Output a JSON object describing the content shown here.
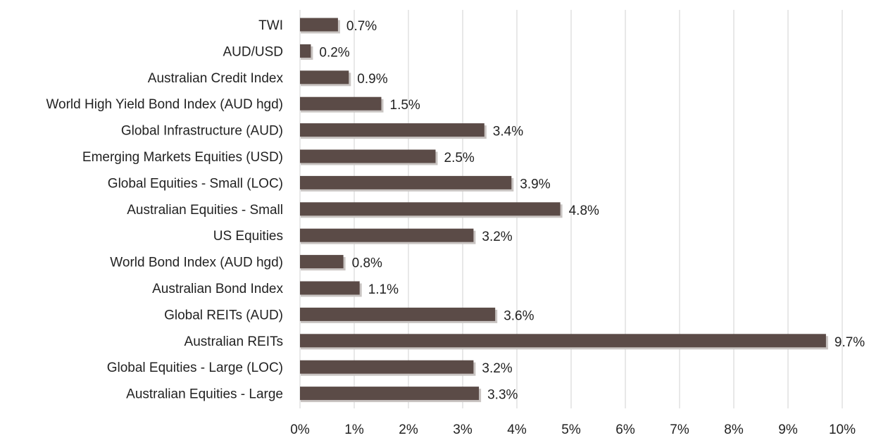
{
  "chart_data": {
    "type": "bar",
    "orientation": "horizontal",
    "categories": [
      "TWI",
      "AUD/USD",
      "Australian Credit Index",
      "World High Yield Bond Index (AUD hgd)",
      "Global Infrastructure (AUD)",
      "Emerging Markets Equities (USD)",
      "Global Equities - Small (LOC)",
      "Australian Equities - Small",
      "US Equities",
      "World Bond Index (AUD hgd)",
      "Australian Bond Index",
      "Global REITs (AUD)",
      "Australian REITs",
      "Global Equities - Large (LOC)",
      "Australian Equities - Large"
    ],
    "values": [
      0.7,
      0.2,
      0.9,
      1.5,
      3.4,
      2.5,
      3.9,
      4.8,
      3.2,
      0.8,
      1.1,
      3.6,
      9.7,
      3.2,
      3.3
    ],
    "data_labels": [
      "0.7%",
      "0.2%",
      "0.9%",
      "1.5%",
      "3.4%",
      "2.5%",
      "3.9%",
      "4.8%",
      "3.2%",
      "0.8%",
      "1.1%",
      "3.6%",
      "9.7%",
      "3.2%",
      "3.3%"
    ],
    "x_ticks": [
      "0%",
      "1%",
      "2%",
      "3%",
      "4%",
      "5%",
      "6%",
      "7%",
      "8%",
      "9%",
      "10%"
    ],
    "xlim": [
      0,
      10
    ],
    "title": "",
    "xlabel": "",
    "ylabel": "",
    "grid": "vertical",
    "legend": "none",
    "colors": {
      "bar": "#5b4b47",
      "bar_shadow": "#c9c4c2",
      "grid": "#d9d9d9",
      "text": "#222222"
    }
  }
}
